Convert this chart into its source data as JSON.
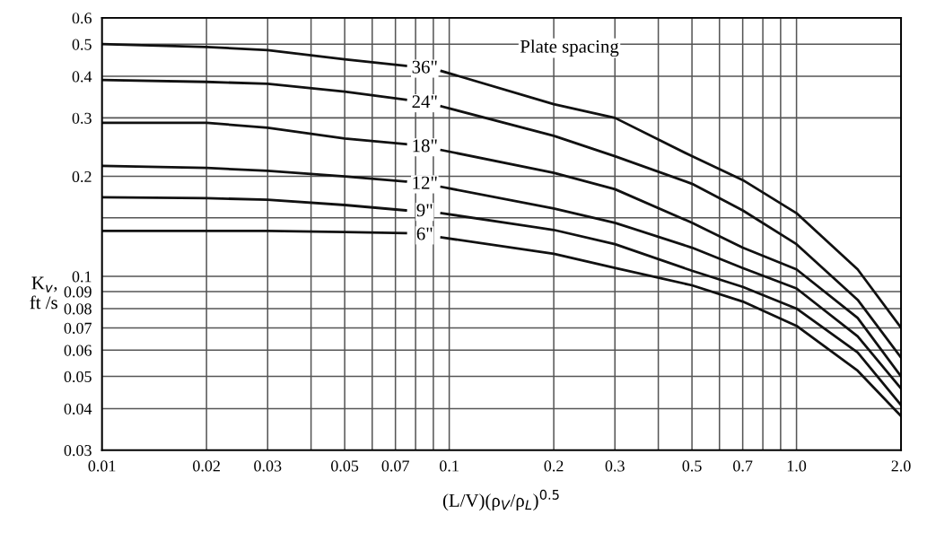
{
  "chart_data": {
    "type": "line",
    "xlabel": "(L/V)(ρ$_{V}$/ρ$_{L}$)$^{0.5}$",
    "ylabel": "K$_{v}$,\nft /s",
    "annotations": [
      "Plate spacing"
    ],
    "log": "xy",
    "grid": true,
    "legend": false,
    "marker": "none",
    "line_style": "solid",
    "xlim": [
      0.01,
      2.0
    ],
    "ylim": [
      0.03,
      0.6
    ],
    "xticks": [
      0.01,
      0.02,
      0.03,
      {
        "value": 0.04,
        "label": null
      },
      0.05,
      {
        "value": 0.06,
        "label": null
      },
      0.07,
      {
        "value": 0.08,
        "label": null
      },
      {
        "value": 0.09,
        "label": null
      },
      0.1,
      0.2,
      0.3,
      {
        "value": 0.4,
        "label": null
      },
      0.5,
      {
        "value": 0.6,
        "label": null
      },
      0.7,
      {
        "value": 0.8,
        "label": null
      },
      {
        "value": 0.9,
        "label": null
      },
      {
        "value": 1.0,
        "label": "1.0"
      },
      {
        "value": 2.0,
        "label": "2.0"
      }
    ],
    "yticks": [
      0.03,
      0.04,
      0.05,
      0.06,
      0.07,
      0.08,
      0.09,
      0.1,
      {
        "value": 0.15,
        "label": null
      },
      0.2,
      0.3,
      0.4,
      0.5,
      0.6
    ],
    "x": [
      0.01,
      0.02,
      0.03,
      0.05,
      0.075,
      0.085,
      0.095,
      0.2,
      0.3,
      0.5,
      0.7,
      1.0,
      1.5,
      2.0
    ],
    "series": [
      {
        "name": "36\"",
        "color": "#111111",
        "values": [
          0.5,
          0.49,
          0.48,
          0.45,
          0.43,
          null,
          0.415,
          0.33,
          0.3,
          0.23,
          0.195,
          0.155,
          0.105,
          0.07
        ]
      },
      {
        "name": "24\"",
        "color": "#111111",
        "values": [
          0.39,
          0.385,
          0.38,
          0.36,
          0.34,
          null,
          0.325,
          0.265,
          0.23,
          0.19,
          0.158,
          0.125,
          0.085,
          0.057
        ]
      },
      {
        "name": "18\"",
        "color": "#111111",
        "values": [
          0.29,
          0.29,
          0.28,
          0.26,
          0.25,
          null,
          0.24,
          0.205,
          0.183,
          0.145,
          0.122,
          0.105,
          0.075,
          0.05
        ]
      },
      {
        "name": "12\"",
        "color": "#111111",
        "values": [
          0.215,
          0.212,
          0.208,
          0.2,
          0.193,
          null,
          0.186,
          0.16,
          0.145,
          0.122,
          0.106,
          0.092,
          0.066,
          0.046
        ]
      },
      {
        "name": "9\"",
        "color": "#111111",
        "values": [
          0.173,
          0.172,
          0.17,
          0.164,
          0.158,
          null,
          0.155,
          0.138,
          0.125,
          0.104,
          0.093,
          0.08,
          0.059,
          0.041
        ]
      },
      {
        "name": "6\"",
        "color": "#111111",
        "values": [
          0.137,
          0.137,
          0.137,
          0.136,
          0.135,
          null,
          0.131,
          0.117,
          0.106,
          0.094,
          0.084,
          0.071,
          0.052,
          0.038
        ]
      }
    ]
  }
}
